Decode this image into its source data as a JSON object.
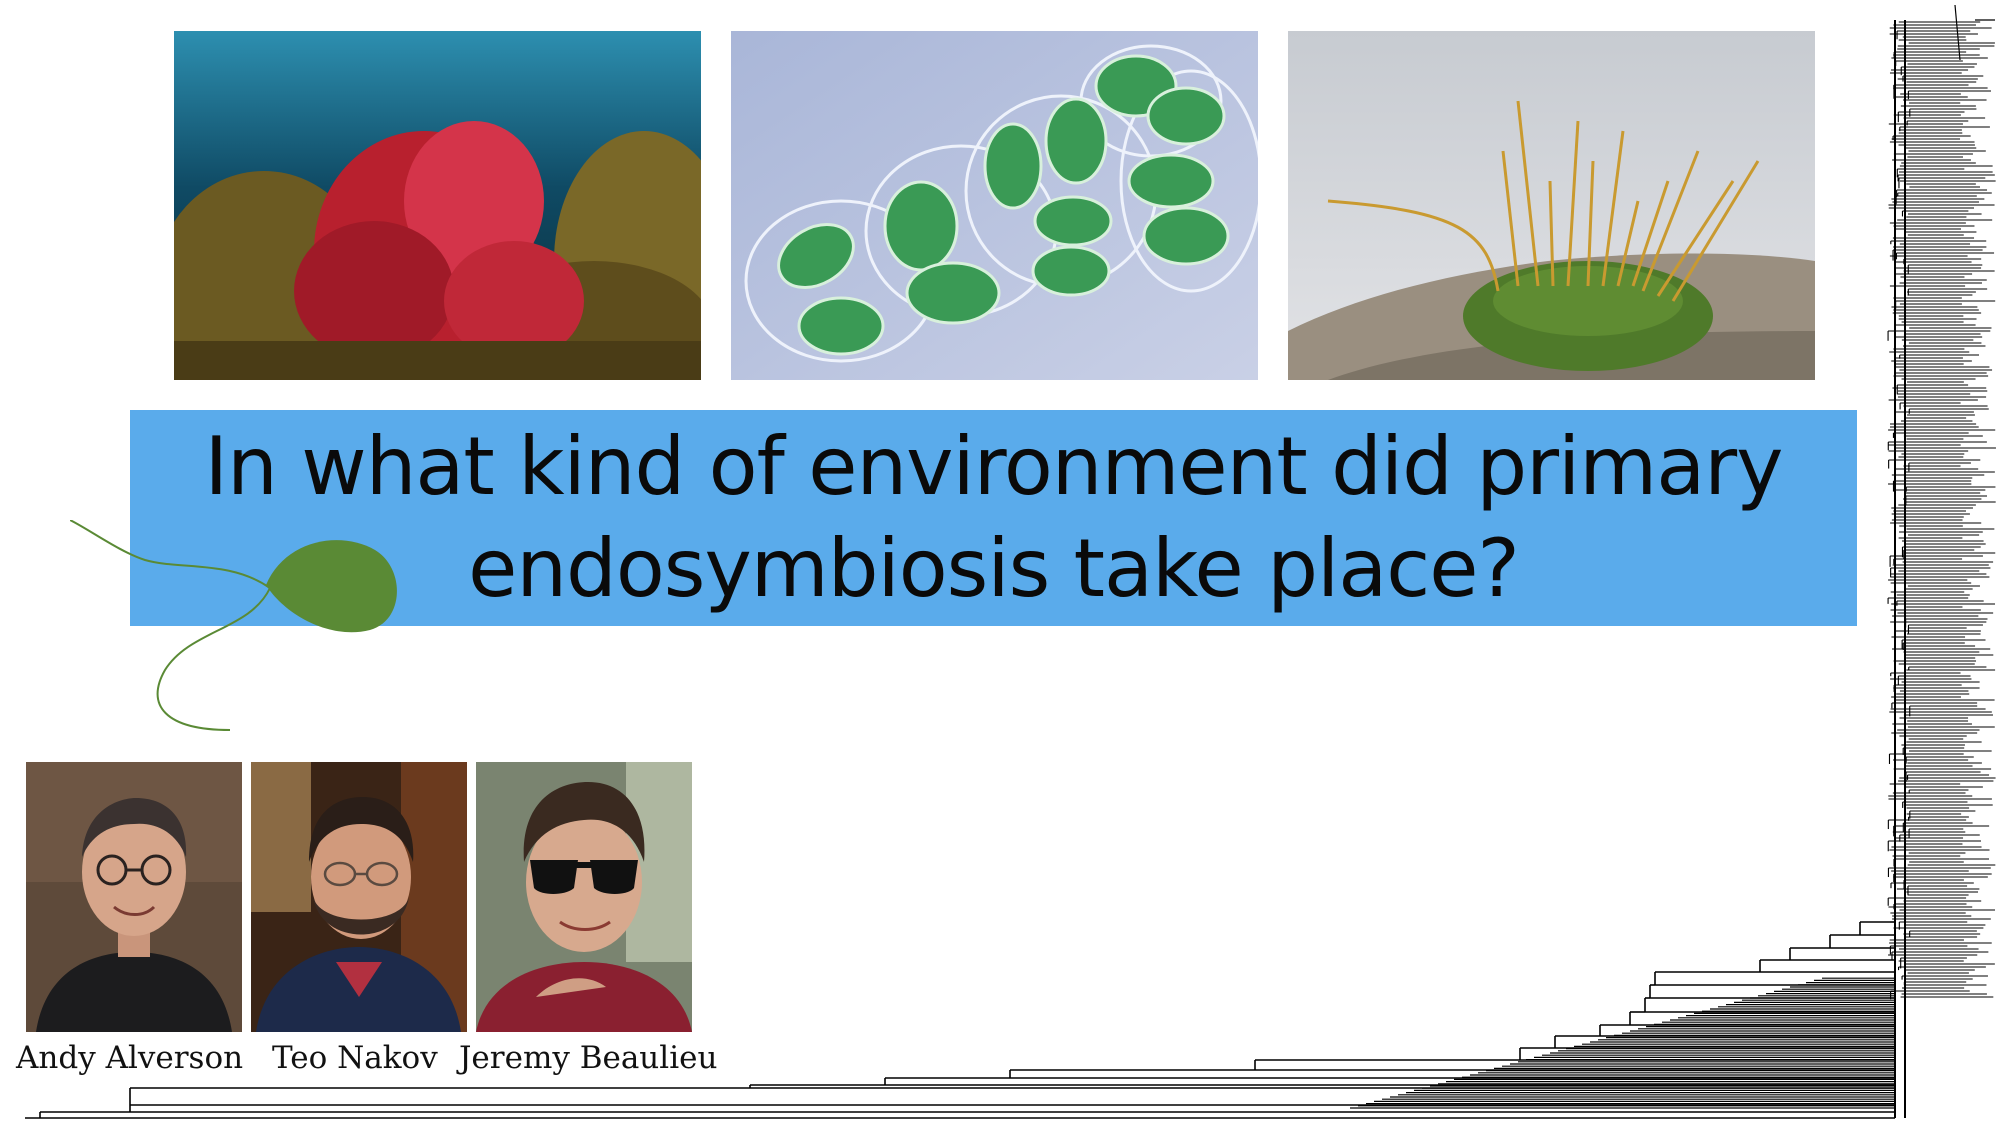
{
  "slide": {
    "title_lines": [
      "In what kind of environment did primary",
      "endosymbiosis take place?"
    ],
    "banner_color": "#5aabeb",
    "leaf_color": "#5a8a35"
  },
  "photos": [
    {
      "subject": "red-algae-underwater",
      "color": "#c8283a"
    },
    {
      "subject": "green-algal-cells",
      "color": "#3fa05a"
    },
    {
      "subject": "moss-on-rock",
      "color": "#6f8a3a"
    }
  ],
  "people": [
    {
      "name": "Andy Alverson"
    },
    {
      "name": "Teo Nakov"
    },
    {
      "name": "Jeremy Beaulieu"
    }
  ]
}
